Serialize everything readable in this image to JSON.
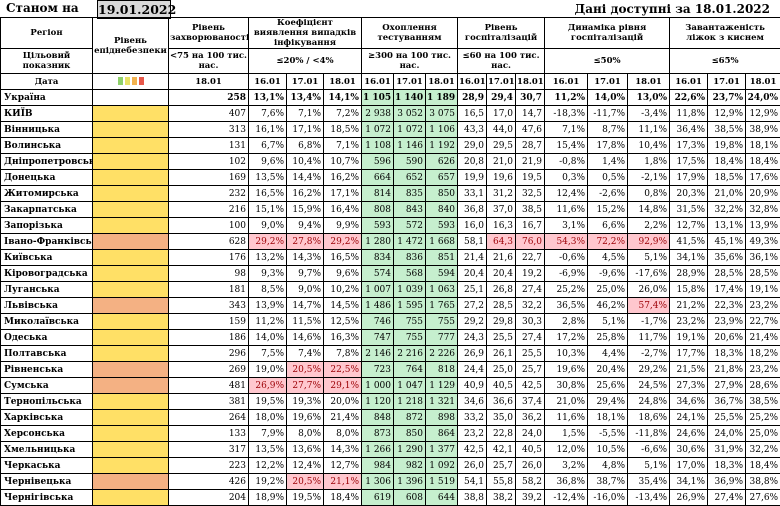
{
  "header": {
    "stanom": "Станом на",
    "date": "19.01.2022",
    "available": "Дані доступні за 18.01.2022"
  },
  "columns": {
    "region": "Регіон",
    "indicator": "Цільовий показник",
    "date_lbl": "Дата",
    "safety": "Рівень епіднебезпеки",
    "morbidity": "Рівень захворюваності",
    "morbidity_target": "<75 на 100 тис. нас.",
    "detection": "Коефіцієнт виявлення випадків інфікування",
    "detection_target": "≤20% / <4%",
    "testing": "Охоплення тестуванням",
    "testing_target": "≥300 на 100 тис. нас.",
    "hosp": "Рівень госпіталізацій",
    "hosp_target": "≤60 на 100 тис. нас.",
    "dyn": "Динаміка рівня госпіталізацій",
    "dyn_target": "≤50%",
    "beds": "Завантаженість ліжок з киснем",
    "beds_target": "≤65%"
  },
  "dates": {
    "d1": "16.01",
    "d2": "17.01",
    "d3": "18.01",
    "m": "18.01"
  },
  "rows": [
    {
      "name": "Україна",
      "safety": "",
      "m": "258",
      "det": [
        "13,1%",
        "13,4%",
        "14,1%"
      ],
      "test": [
        "1 105",
        "1 140",
        "1 189"
      ],
      "hosp": [
        "28,9",
        "29,4",
        "30,7"
      ],
      "dyn": [
        "11,2%",
        "14,0%",
        "13,0%"
      ],
      "beds": [
        "22,6%",
        "23,7%",
        "24,0%"
      ],
      "ukr": true
    },
    {
      "name": "КИЇВ",
      "safety": "yellow",
      "m": "407",
      "det": [
        "7,6%",
        "7,1%",
        "7,2%"
      ],
      "test": [
        "2 938",
        "3 052",
        "3 075"
      ],
      "hosp": [
        "16,5",
        "17,0",
        "14,7"
      ],
      "dyn": [
        "-18,3%",
        "-11,7%",
        "-3,4%"
      ],
      "beds": [
        "11,8%",
        "12,9%",
        "12,9%"
      ]
    },
    {
      "name": "Вінницька",
      "safety": "yellow",
      "m": "313",
      "det": [
        "16,1%",
        "17,1%",
        "18,5%"
      ],
      "test": [
        "1 072",
        "1 072",
        "1 106"
      ],
      "hosp": [
        "43,3",
        "44,0",
        "47,6"
      ],
      "dyn": [
        "7,1%",
        "8,7%",
        "11,1%"
      ],
      "beds": [
        "36,4%",
        "38,5%",
        "38,9%"
      ]
    },
    {
      "name": "Волинська",
      "safety": "yellow",
      "m": "131",
      "det": [
        "6,7%",
        "6,8%",
        "7,1%"
      ],
      "test": [
        "1 108",
        "1 146",
        "1 192"
      ],
      "hosp": [
        "29,0",
        "29,5",
        "28,7"
      ],
      "dyn": [
        "15,4%",
        "17,8%",
        "10,4%"
      ],
      "beds": [
        "17,3%",
        "19,8%",
        "18,1%"
      ]
    },
    {
      "name": "Дніпропетровська",
      "safety": "yellow",
      "m": "102",
      "det": [
        "9,6%",
        "10,4%",
        "10,7%"
      ],
      "test": [
        "596",
        "590",
        "626"
      ],
      "hosp": [
        "20,8",
        "21,0",
        "21,9"
      ],
      "dyn": [
        "-0,8%",
        "1,4%",
        "1,8%"
      ],
      "beds": [
        "17,5%",
        "18,4%",
        "18,4%"
      ]
    },
    {
      "name": "Донецька",
      "safety": "yellow",
      "m": "169",
      "det": [
        "13,5%",
        "14,4%",
        "16,2%"
      ],
      "test": [
        "664",
        "652",
        "657"
      ],
      "hosp": [
        "19,9",
        "19,6",
        "19,5"
      ],
      "dyn": [
        "0,3%",
        "0,5%",
        "-2,1%"
      ],
      "beds": [
        "17,9%",
        "18,5%",
        "17,6%"
      ]
    },
    {
      "name": "Житомирська",
      "safety": "yellow",
      "m": "232",
      "det": [
        "16,5%",
        "16,2%",
        "17,1%"
      ],
      "test": [
        "814",
        "835",
        "850"
      ],
      "hosp": [
        "33,1",
        "31,2",
        "32,5"
      ],
      "dyn": [
        "12,4%",
        "-2,6%",
        "0,8%"
      ],
      "beds": [
        "20,3%",
        "21,0%",
        "20,9%"
      ]
    },
    {
      "name": "Закарпатська",
      "safety": "yellow",
      "m": "216",
      "det": [
        "15,1%",
        "15,9%",
        "16,4%"
      ],
      "test": [
        "808",
        "843",
        "840"
      ],
      "hosp": [
        "36,8",
        "37,0",
        "38,5"
      ],
      "dyn": [
        "11,6%",
        "15,2%",
        "14,8%"
      ],
      "beds": [
        "31,5%",
        "32,2%",
        "32,8%"
      ]
    },
    {
      "name": "Запорізька",
      "safety": "yellow",
      "m": "100",
      "det": [
        "9,0%",
        "9,4%",
        "9,9%"
      ],
      "test": [
        "593",
        "572",
        "593"
      ],
      "hosp": [
        "16,0",
        "16,3",
        "16,7"
      ],
      "dyn": [
        "3,1%",
        "6,6%",
        "2,2%"
      ],
      "beds": [
        "12,7%",
        "13,1%",
        "13,9%"
      ]
    },
    {
      "name": "Івано-Франківська",
      "safety": "orange",
      "m": "628",
      "det": [
        "29,2%",
        "27,8%",
        "29,2%"
      ],
      "detR": [
        1,
        1,
        1
      ],
      "test": [
        "1 280",
        "1 472",
        "1 668"
      ],
      "hosp": [
        "58,1",
        "64,3",
        "76,0"
      ],
      "hospR": [
        0,
        1,
        1
      ],
      "dyn": [
        "54,3%",
        "72,2%",
        "92,9%"
      ],
      "dynR": [
        1,
        1,
        1
      ],
      "beds": [
        "41,5%",
        "45,1%",
        "49,3%"
      ]
    },
    {
      "name": "Київська",
      "safety": "yellow",
      "m": "176",
      "det": [
        "13,2%",
        "14,3%",
        "16,5%"
      ],
      "test": [
        "834",
        "836",
        "851"
      ],
      "hosp": [
        "21,4",
        "21,6",
        "22,7"
      ],
      "dyn": [
        "-0,6%",
        "4,5%",
        "5,1%"
      ],
      "beds": [
        "34,1%",
        "35,6%",
        "36,1%"
      ]
    },
    {
      "name": "Кіровоградська",
      "safety": "yellow",
      "m": "98",
      "det": [
        "9,3%",
        "9,7%",
        "9,6%"
      ],
      "test": [
        "574",
        "568",
        "594"
      ],
      "hosp": [
        "20,4",
        "20,4",
        "19,2"
      ],
      "dyn": [
        "-6,9%",
        "-9,6%",
        "-17,6%"
      ],
      "beds": [
        "28,9%",
        "28,5%",
        "28,5%"
      ]
    },
    {
      "name": "Луганська",
      "safety": "yellow",
      "m": "181",
      "det": [
        "8,5%",
        "9,0%",
        "10,2%"
      ],
      "test": [
        "1 007",
        "1 039",
        "1 063"
      ],
      "hosp": [
        "25,1",
        "26,8",
        "27,4"
      ],
      "dyn": [
        "25,2%",
        "25,0%",
        "26,0%"
      ],
      "beds": [
        "15,8%",
        "17,4%",
        "19,1%"
      ]
    },
    {
      "name": "Львівська",
      "safety": "orange",
      "m": "343",
      "det": [
        "13,9%",
        "14,7%",
        "14,5%"
      ],
      "test": [
        "1 486",
        "1 595",
        "1 765"
      ],
      "hosp": [
        "27,2",
        "28,5",
        "32,2"
      ],
      "dyn": [
        "36,5%",
        "46,2%",
        "57,4%"
      ],
      "dynR": [
        0,
        0,
        1
      ],
      "beds": [
        "21,2%",
        "22,3%",
        "23,2%"
      ]
    },
    {
      "name": "Миколаївська",
      "safety": "yellow",
      "m": "159",
      "det": [
        "11,2%",
        "11,5%",
        "12,5%"
      ],
      "test": [
        "746",
        "755",
        "755"
      ],
      "hosp": [
        "29,2",
        "29,8",
        "30,3"
      ],
      "dyn": [
        "2,8%",
        "5,1%",
        "-1,7%"
      ],
      "beds": [
        "23,2%",
        "23,9%",
        "22,7%"
      ]
    },
    {
      "name": "Одеська",
      "safety": "yellow",
      "m": "186",
      "det": [
        "14,0%",
        "14,6%",
        "16,3%"
      ],
      "test": [
        "747",
        "755",
        "777"
      ],
      "hosp": [
        "24,3",
        "25,5",
        "27,4"
      ],
      "dyn": [
        "17,2%",
        "25,8%",
        "11,7%"
      ],
      "beds": [
        "19,1%",
        "20,6%",
        "21,4%"
      ]
    },
    {
      "name": "Полтавська",
      "safety": "yellow",
      "m": "296",
      "det": [
        "7,5%",
        "7,4%",
        "7,8%"
      ],
      "test": [
        "2 146",
        "2 216",
        "2 226"
      ],
      "hosp": [
        "26,9",
        "26,1",
        "25,5"
      ],
      "dyn": [
        "10,3%",
        "4,4%",
        "-2,7%"
      ],
      "beds": [
        "17,7%",
        "18,3%",
        "18,2%"
      ]
    },
    {
      "name": "Рівненська",
      "safety": "orange",
      "m": "269",
      "det": [
        "19,0%",
        "20,5%",
        "22,5%"
      ],
      "detR": [
        0,
        1,
        1
      ],
      "test": [
        "723",
        "764",
        "818"
      ],
      "hosp": [
        "24,4",
        "25,0",
        "25,7"
      ],
      "dyn": [
        "19,6%",
        "20,4%",
        "29,2%"
      ],
      "beds": [
        "21,5%",
        "21,8%",
        "23,2%"
      ]
    },
    {
      "name": "Сумська",
      "safety": "orange",
      "m": "481",
      "det": [
        "26,9%",
        "27,7%",
        "29,1%"
      ],
      "detR": [
        1,
        1,
        1
      ],
      "test": [
        "1 000",
        "1 047",
        "1 129"
      ],
      "hosp": [
        "40,9",
        "40,5",
        "42,5"
      ],
      "dyn": [
        "30,8%",
        "25,6%",
        "24,5%"
      ],
      "beds": [
        "27,3%",
        "27,9%",
        "28,6%"
      ]
    },
    {
      "name": "Тернопільська",
      "safety": "yellow",
      "m": "381",
      "det": [
        "19,5%",
        "19,3%",
        "20,0%"
      ],
      "test": [
        "1 120",
        "1 218",
        "1 321"
      ],
      "hosp": [
        "34,6",
        "36,6",
        "37,4"
      ],
      "dyn": [
        "21,0%",
        "29,4%",
        "24,8%"
      ],
      "beds": [
        "34,6%",
        "36,7%",
        "38,5%"
      ]
    },
    {
      "name": "Харківська",
      "safety": "yellow",
      "m": "264",
      "det": [
        "18,0%",
        "19,6%",
        "21,4%"
      ],
      "test": [
        "848",
        "872",
        "898"
      ],
      "hosp": [
        "33,2",
        "35,0",
        "36,2"
      ],
      "dyn": [
        "11,6%",
        "18,1%",
        "18,6%"
      ],
      "beds": [
        "24,1%",
        "25,5%",
        "25,2%"
      ]
    },
    {
      "name": "Херсонська",
      "safety": "yellow",
      "m": "133",
      "det": [
        "7,9%",
        "8,0%",
        "8,0%"
      ],
      "test": [
        "873",
        "850",
        "864"
      ],
      "hosp": [
        "23,2",
        "22,8",
        "24,0"
      ],
      "dyn": [
        "1,5%",
        "-5,5%",
        "-11,8%"
      ],
      "beds": [
        "24,6%",
        "24,0%",
        "25,0%"
      ]
    },
    {
      "name": "Хмельницька",
      "safety": "yellow",
      "m": "317",
      "det": [
        "13,5%",
        "13,6%",
        "14,3%"
      ],
      "test": [
        "1 266",
        "1 290",
        "1 377"
      ],
      "hosp": [
        "42,5",
        "42,1",
        "40,5"
      ],
      "dyn": [
        "12,0%",
        "10,5%",
        "-6,6%"
      ],
      "beds": [
        "30,6%",
        "31,9%",
        "32,2%"
      ]
    },
    {
      "name": "Черкаська",
      "safety": "yellow",
      "m": "223",
      "det": [
        "12,2%",
        "12,4%",
        "12,7%"
      ],
      "test": [
        "984",
        "982",
        "1 092"
      ],
      "hosp": [
        "26,0",
        "25,7",
        "26,0"
      ],
      "dyn": [
        "3,2%",
        "4,8%",
        "5,1%"
      ],
      "beds": [
        "17,0%",
        "18,3%",
        "18,4%"
      ]
    },
    {
      "name": "Чернівецька",
      "safety": "orange",
      "m": "426",
      "det": [
        "19,2%",
        "20,5%",
        "21,1%"
      ],
      "detR": [
        0,
        1,
        1
      ],
      "test": [
        "1 306",
        "1 396",
        "1 519"
      ],
      "hosp": [
        "54,1",
        "55,8",
        "58,2"
      ],
      "dyn": [
        "36,8%",
        "38,7%",
        "35,4%"
      ],
      "beds": [
        "34,1%",
        "36,9%",
        "38,8%"
      ]
    },
    {
      "name": "Чернігівська",
      "safety": "yellow",
      "m": "204",
      "det": [
        "18,9%",
        "19,5%",
        "18,4%"
      ],
      "test": [
        "619",
        "608",
        "644"
      ],
      "hosp": [
        "38,8",
        "38,2",
        "39,2"
      ],
      "dyn": [
        "-12,4%",
        "-16,0%",
        "-13,4%"
      ],
      "beds": [
        "26,9%",
        "27,4%",
        "27,6%"
      ]
    }
  ],
  "colors": {
    "yellow": "#ffe066",
    "orange": "#f4b183",
    "green": "#c6efce",
    "red": "#ffc7ce",
    "legend": [
      "#8fd16b",
      "#e8e266",
      "#f2b24f",
      "#e8584a"
    ]
  }
}
